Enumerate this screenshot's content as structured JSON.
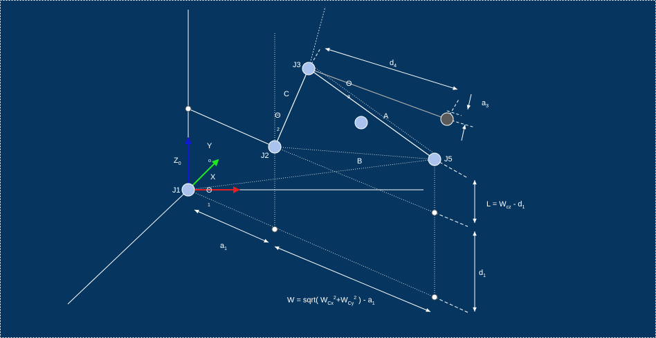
{
  "joints": {
    "j1": "J1",
    "j2": "J2",
    "j3": "J3",
    "j5": "J5"
  },
  "links": {
    "a": "A",
    "b": "B",
    "c": "C"
  },
  "axes": {
    "z_main": "Z",
    "z_sub": "0",
    "y": "Y",
    "x": "X",
    "small_o": "o"
  },
  "angles": {
    "theta": "Θ",
    "theta1_sub": "1",
    "theta2_sub": "2",
    "theta3_sub": "3"
  },
  "dimensions": {
    "d4_main": "d",
    "d4_sub": "4",
    "a3_main": "a",
    "a3_sub": "3",
    "a1_main": "a",
    "a1_sub": "1",
    "d1_main": "d",
    "d1_sub": "1",
    "l_formula_main": "L = W",
    "l_formula_sub": "cz",
    "l_formula_rest": " - d",
    "l_formula_sub2": "1",
    "w_formula_a": "W = sqrt( W",
    "w_formula_b": "Cx",
    "w_formula_c": "2",
    "w_formula_d": "+W",
    "w_formula_e": "Cy",
    "w_formula_f": "2",
    "w_formula_g": " ) - a",
    "w_formula_h": "1"
  },
  "colors": {
    "background": "#06365f",
    "joint_fill": "#a9c3ee",
    "end_effector_fill": "#5a5a5a",
    "z_axis": "#1018d8",
    "y_axis": "#22e622",
    "x_axis": "#e62020",
    "line": "#ffffff"
  }
}
